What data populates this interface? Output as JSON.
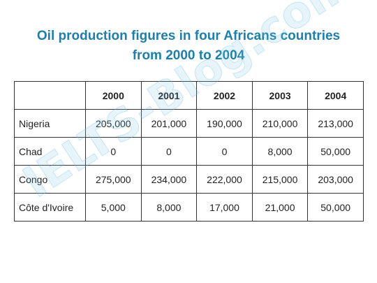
{
  "chart_data": {
    "type": "table",
    "title_line1": "Oil production figures in four Africans countries",
    "title_line2": "from 2000 to 2004",
    "columns": [
      "2000",
      "2001",
      "2002",
      "2003",
      "2004"
    ],
    "rows": [
      {
        "name": "Nigeria",
        "values": [
          "205,000",
          "201,000",
          "190,000",
          "210,000",
          "213,000"
        ]
      },
      {
        "name": "Chad",
        "values": [
          "0",
          "0",
          "0",
          "8,000",
          "50,000"
        ]
      },
      {
        "name": "Congo",
        "values": [
          "275,000",
          "234,000",
          "222,000",
          "215,000",
          "203,000"
        ]
      },
      {
        "name": "Côte d'Ivoire",
        "values": [
          "5,000",
          "8,000",
          "17,000",
          "21,000",
          "50,000"
        ]
      }
    ]
  },
  "watermark": "IELTS-Blog.com",
  "colors": {
    "title": "#1f7fa8",
    "border": "#333333",
    "text": "#222222"
  }
}
